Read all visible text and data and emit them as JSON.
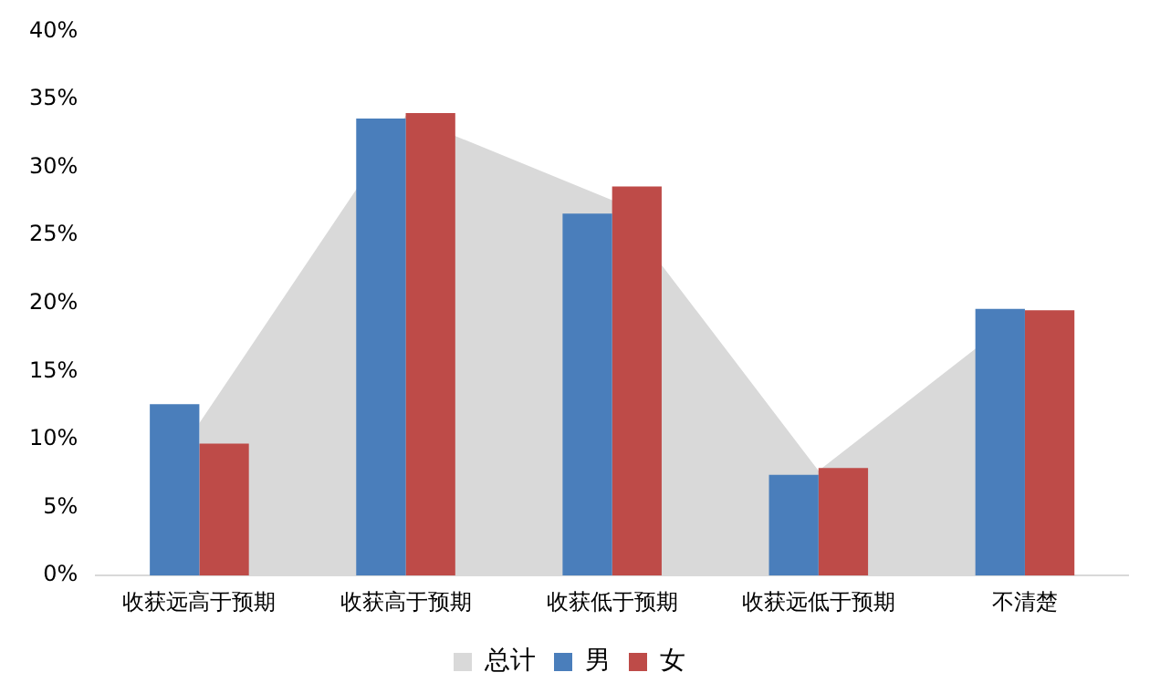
{
  "chart_data": {
    "type": "bar",
    "categories": [
      "收获远高于预期",
      "收获高于预期",
      "收获低于预期",
      "收获远低于预期",
      "不清楚"
    ],
    "series": [
      {
        "name": "总计",
        "type": "area",
        "color": "#d9d9d9",
        "values": [
          11.2,
          33.8,
          27.6,
          7.7,
          19.5
        ]
      },
      {
        "name": "男",
        "color": "#4a7ebb",
        "values": [
          12.6,
          33.6,
          26.6,
          7.4,
          19.6
        ]
      },
      {
        "name": "女",
        "color": "#be4b48",
        "values": [
          9.7,
          34.0,
          28.6,
          7.9,
          19.5
        ]
      }
    ],
    "ylim": [
      0,
      40
    ],
    "yticks": [
      {
        "value": 0,
        "label": "0%"
      },
      {
        "value": 5,
        "label": "5%"
      },
      {
        "value": 10,
        "label": "10%"
      },
      {
        "value": 15,
        "label": "15%"
      },
      {
        "value": 20,
        "label": "20%"
      },
      {
        "value": 25,
        "label": "25%"
      },
      {
        "value": 30,
        "label": "30%"
      },
      {
        "value": 35,
        "label": "35%"
      },
      {
        "value": 40,
        "label": "40%"
      }
    ],
    "grid": false,
    "legend": "bottom"
  }
}
